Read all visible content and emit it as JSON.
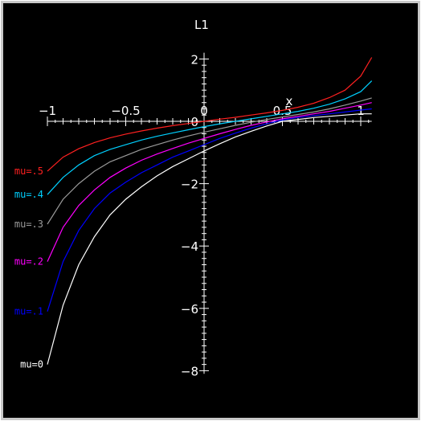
{
  "chart_data": {
    "type": "line",
    "title": "L1",
    "xlabel": "x",
    "ylabel": "",
    "xlim": [
      -1,
      1.07
    ],
    "ylim": [
      -8.1,
      2.2
    ],
    "xticks": [
      -1,
      -0.5,
      0,
      0.5,
      1
    ],
    "xtick_labels": [
      "−1",
      "−0.5",
      "0",
      "0.5",
      "1"
    ],
    "yticks": [
      -8,
      -6,
      -4,
      -2,
      0,
      2
    ],
    "ytick_labels": [
      "−8",
      "−6",
      "−4",
      "−2",
      "0",
      "2"
    ],
    "grid": false,
    "background": "#000000",
    "axis_color": "#ffffff",
    "series": [
      {
        "name": "mu=0",
        "color": "#ffffff",
        "x": [
          -1,
          -0.9,
          -0.8,
          -0.7,
          -0.6,
          -0.5,
          -0.4,
          -0.3,
          -0.2,
          -0.1,
          0,
          0.1,
          0.2,
          0.3,
          0.4,
          0.5,
          0.6,
          0.7,
          0.8,
          0.9,
          1.0,
          1.07
        ],
        "y": [
          -7.8,
          -5.9,
          -4.6,
          -3.7,
          -3.0,
          -2.5,
          -2.1,
          -1.75,
          -1.45,
          -1.2,
          -0.95,
          -0.72,
          -0.5,
          -0.32,
          -0.15,
          0.0,
          0.06,
          0.12,
          0.16,
          0.2,
          0.24,
          0.24
        ]
      },
      {
        "name": "mu=.1",
        "color": "#0000ff",
        "x": [
          -1,
          -0.9,
          -0.8,
          -0.7,
          -0.6,
          -0.5,
          -0.4,
          -0.3,
          -0.2,
          -0.1,
          0,
          0.1,
          0.2,
          0.3,
          0.4,
          0.5,
          0.6,
          0.7,
          0.8,
          0.9,
          1.0,
          1.07
        ],
        "y": [
          -6.1,
          -4.5,
          -3.5,
          -2.8,
          -2.3,
          -1.95,
          -1.65,
          -1.4,
          -1.15,
          -0.95,
          -0.75,
          -0.55,
          -0.38,
          -0.22,
          -0.08,
          0.04,
          0.12,
          0.18,
          0.24,
          0.3,
          0.36,
          0.4
        ]
      },
      {
        "name": "mu=.2",
        "color": "#ff00ff",
        "x": [
          -1,
          -0.9,
          -0.8,
          -0.7,
          -0.6,
          -0.5,
          -0.4,
          -0.3,
          -0.2,
          -0.1,
          0,
          0.1,
          0.2,
          0.3,
          0.4,
          0.5,
          0.6,
          0.7,
          0.8,
          0.9,
          1.0,
          1.07
        ],
        "y": [
          -4.5,
          -3.4,
          -2.7,
          -2.2,
          -1.8,
          -1.5,
          -1.25,
          -1.05,
          -0.87,
          -0.7,
          -0.55,
          -0.4,
          -0.26,
          -0.13,
          -0.02,
          0.08,
          0.16,
          0.24,
          0.32,
          0.42,
          0.52,
          0.6
        ]
      },
      {
        "name": "mu=.3",
        "color": "#9a9a9a",
        "x": [
          -1,
          -0.9,
          -0.8,
          -0.7,
          -0.6,
          -0.5,
          -0.4,
          -0.3,
          -0.2,
          -0.1,
          0,
          0.1,
          0.2,
          0.3,
          0.4,
          0.5,
          0.6,
          0.7,
          0.8,
          0.9,
          1.0,
          1.07
        ],
        "y": [
          -3.3,
          -2.5,
          -2.0,
          -1.6,
          -1.3,
          -1.1,
          -0.9,
          -0.75,
          -0.6,
          -0.47,
          -0.35,
          -0.24,
          -0.13,
          -0.03,
          0.06,
          0.14,
          0.22,
          0.3,
          0.4,
          0.52,
          0.65,
          0.75
        ]
      },
      {
        "name": "mu=.4",
        "color": "#00d0ff",
        "x": [
          -1,
          -0.9,
          -0.8,
          -0.7,
          -0.6,
          -0.5,
          -0.4,
          -0.3,
          -0.2,
          -0.1,
          0,
          0.1,
          0.2,
          0.3,
          0.4,
          0.5,
          0.6,
          0.7,
          0.8,
          0.9,
          1.0,
          1.07
        ],
        "y": [
          -2.35,
          -1.8,
          -1.4,
          -1.1,
          -0.9,
          -0.75,
          -0.6,
          -0.48,
          -0.37,
          -0.27,
          -0.17,
          -0.08,
          0.0,
          0.08,
          0.16,
          0.24,
          0.32,
          0.42,
          0.55,
          0.72,
          0.95,
          1.3
        ]
      },
      {
        "name": "mu=.5",
        "color": "#ff2020",
        "x": [
          -1,
          -0.9,
          -0.8,
          -0.7,
          -0.6,
          -0.5,
          -0.4,
          -0.3,
          -0.2,
          -0.1,
          0,
          0.1,
          0.2,
          0.3,
          0.4,
          0.5,
          0.6,
          0.7,
          0.8,
          0.9,
          1.0,
          1.07
        ],
        "y": [
          -1.6,
          -1.15,
          -0.88,
          -0.68,
          -0.53,
          -0.41,
          -0.31,
          -0.22,
          -0.14,
          -0.07,
          0.0,
          0.07,
          0.13,
          0.2,
          0.27,
          0.35,
          0.45,
          0.58,
          0.76,
          1.0,
          1.45,
          2.05
        ]
      }
    ],
    "curve_labels": [
      "mu=.5",
      "mu=.4",
      "mu=.3",
      "mu=.2",
      "mu=.1",
      "mu=0"
    ]
  }
}
